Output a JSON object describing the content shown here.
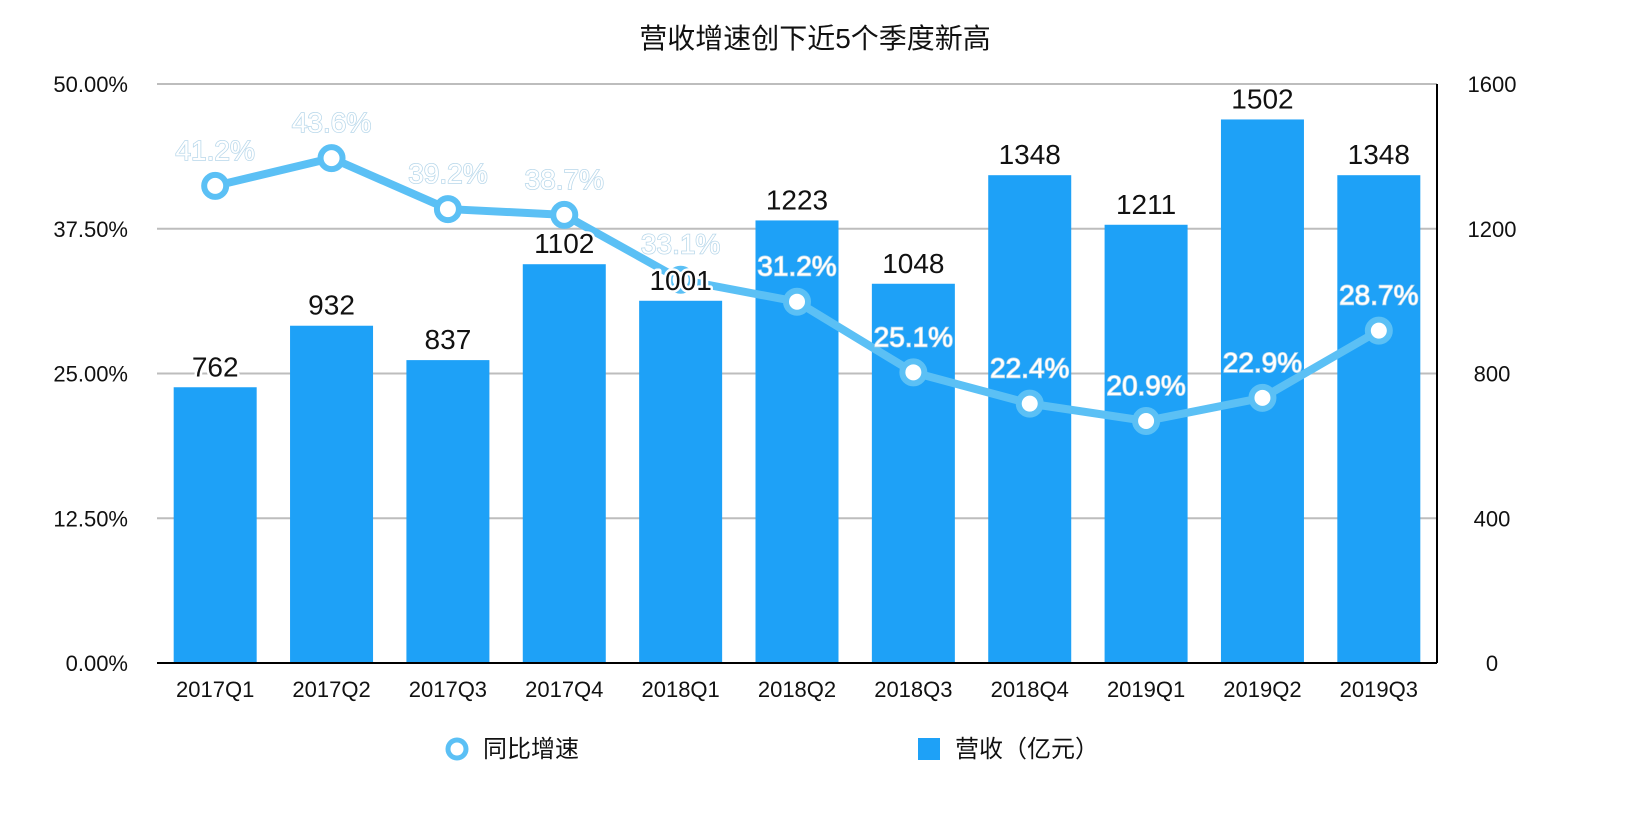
{
  "chart_data": {
    "type": "bar",
    "title": "营收增速创下近5个季度新高",
    "categories": [
      "2017Q1",
      "2017Q2",
      "2017Q3",
      "2017Q4",
      "2018Q1",
      "2018Q2",
      "2018Q3",
      "2018Q4",
      "2019Q1",
      "2019Q2",
      "2019Q3"
    ],
    "series": [
      {
        "name": "营收（亿元）",
        "type": "bar",
        "axis": "right",
        "color": "#1ea1f7",
        "values": [
          762,
          932,
          837,
          1102,
          1001,
          1223,
          1048,
          1348,
          1211,
          1502,
          1348
        ],
        "labels": [
          "762",
          "932",
          "837",
          "1102",
          "1001",
          "1223",
          "1048",
          "1348",
          "1211",
          "1502",
          "1348"
        ]
      },
      {
        "name": "同比增速",
        "type": "line",
        "axis": "left",
        "color": "#5bc0f5",
        "values": [
          41.2,
          43.6,
          39.2,
          38.7,
          33.1,
          31.2,
          25.1,
          22.4,
          20.9,
          22.9,
          28.7
        ],
        "labels": [
          "41.2%",
          "43.6%",
          "39.2%",
          "38.7%",
          "33.1%",
          "31.2%",
          "25.1%",
          "22.4%",
          "20.9%",
          "22.9%",
          "28.7%"
        ]
      }
    ],
    "y_left": {
      "min": 0,
      "max": 50,
      "ticks": [
        "0.00%",
        "12.50%",
        "25.00%",
        "37.50%",
        "50.00%"
      ]
    },
    "y_right": {
      "min": 0,
      "max": 1600,
      "ticks": [
        "0",
        "400",
        "800",
        "1200",
        "1600"
      ]
    },
    "grid": true,
    "legend": {
      "position": "bottom",
      "items": [
        "同比增速",
        "营收（亿元）"
      ]
    }
  }
}
